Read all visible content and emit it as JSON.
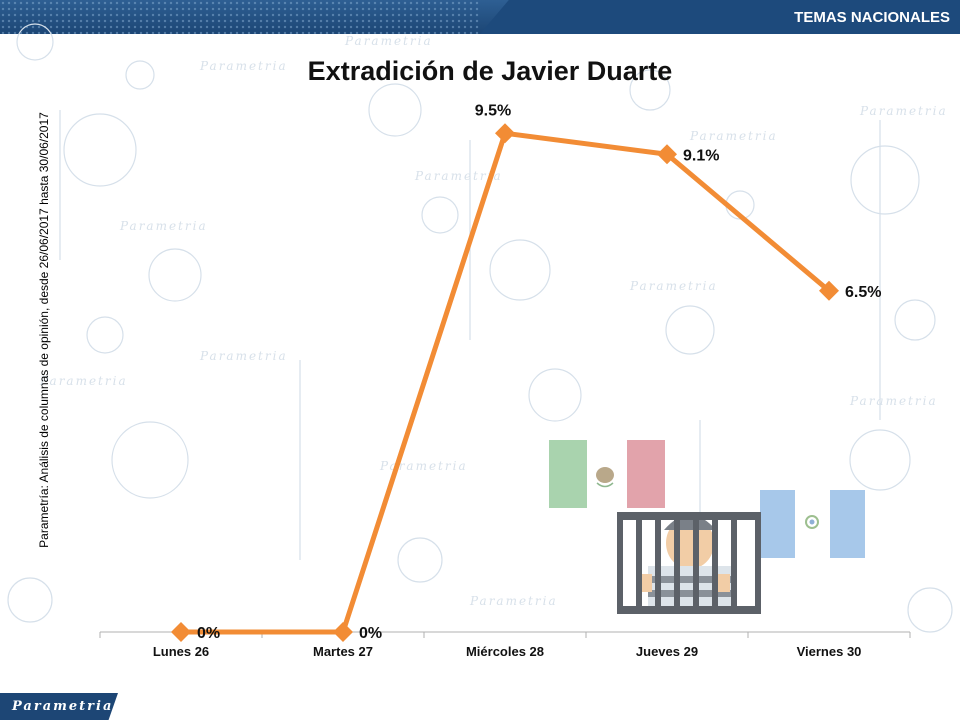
{
  "header": {
    "section_tag": "TEMAS NACIONALES"
  },
  "source_note": "Parametría: Análisis de columnas de opinión, desde 26/06/2017 hasta 30/06/2017",
  "footer": {
    "brand": "Parametria"
  },
  "watermark": {
    "brand": "Parametria"
  },
  "colors": {
    "accent": "#f28c35",
    "header_blue": "#1d4a7c",
    "axis": "#b0b0b0"
  },
  "illustration": {
    "icons": [
      "mexico-flag-icon",
      "prisoner-behind-bars-icon",
      "guatemala-flag-icon"
    ]
  },
  "chart_data": {
    "type": "line",
    "title": "Extradición de Javier Duarte",
    "categories": [
      "Lunes 26",
      "Martes 27",
      "Miércoles 28",
      "Jueves 29",
      "Viernes 30"
    ],
    "series": [
      {
        "values": [
          0,
          0,
          9.5,
          9.1,
          6.5
        ],
        "labels": [
          "0%",
          "0%",
          "9.5%",
          "9.1%",
          "6.5%"
        ],
        "color": "#f28c35"
      }
    ],
    "ylim": [
      0,
      10
    ],
    "grid": false,
    "marker": "diamond"
  }
}
